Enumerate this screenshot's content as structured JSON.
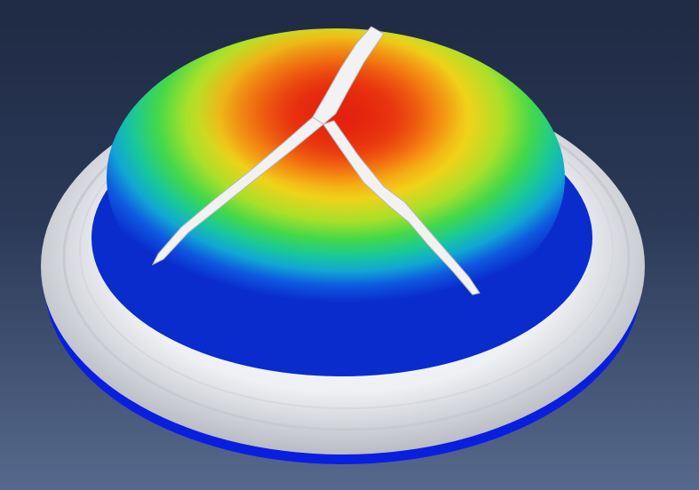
{
  "viewport": {
    "background_top": "#1f2a44",
    "background_bottom": "#56698c"
  },
  "model": {
    "contour_colors": [
      "#0a2ccc",
      "#0e58e0",
      "#11a6d4",
      "#19c89a",
      "#43d84a",
      "#a8e02a",
      "#f0d21a",
      "#f79a12",
      "#ee4a10",
      "#e3200e"
    ],
    "flange_color": "#e4e6ea",
    "base_color": "#0a1ee0",
    "crack_color": "#f2f2f2"
  }
}
